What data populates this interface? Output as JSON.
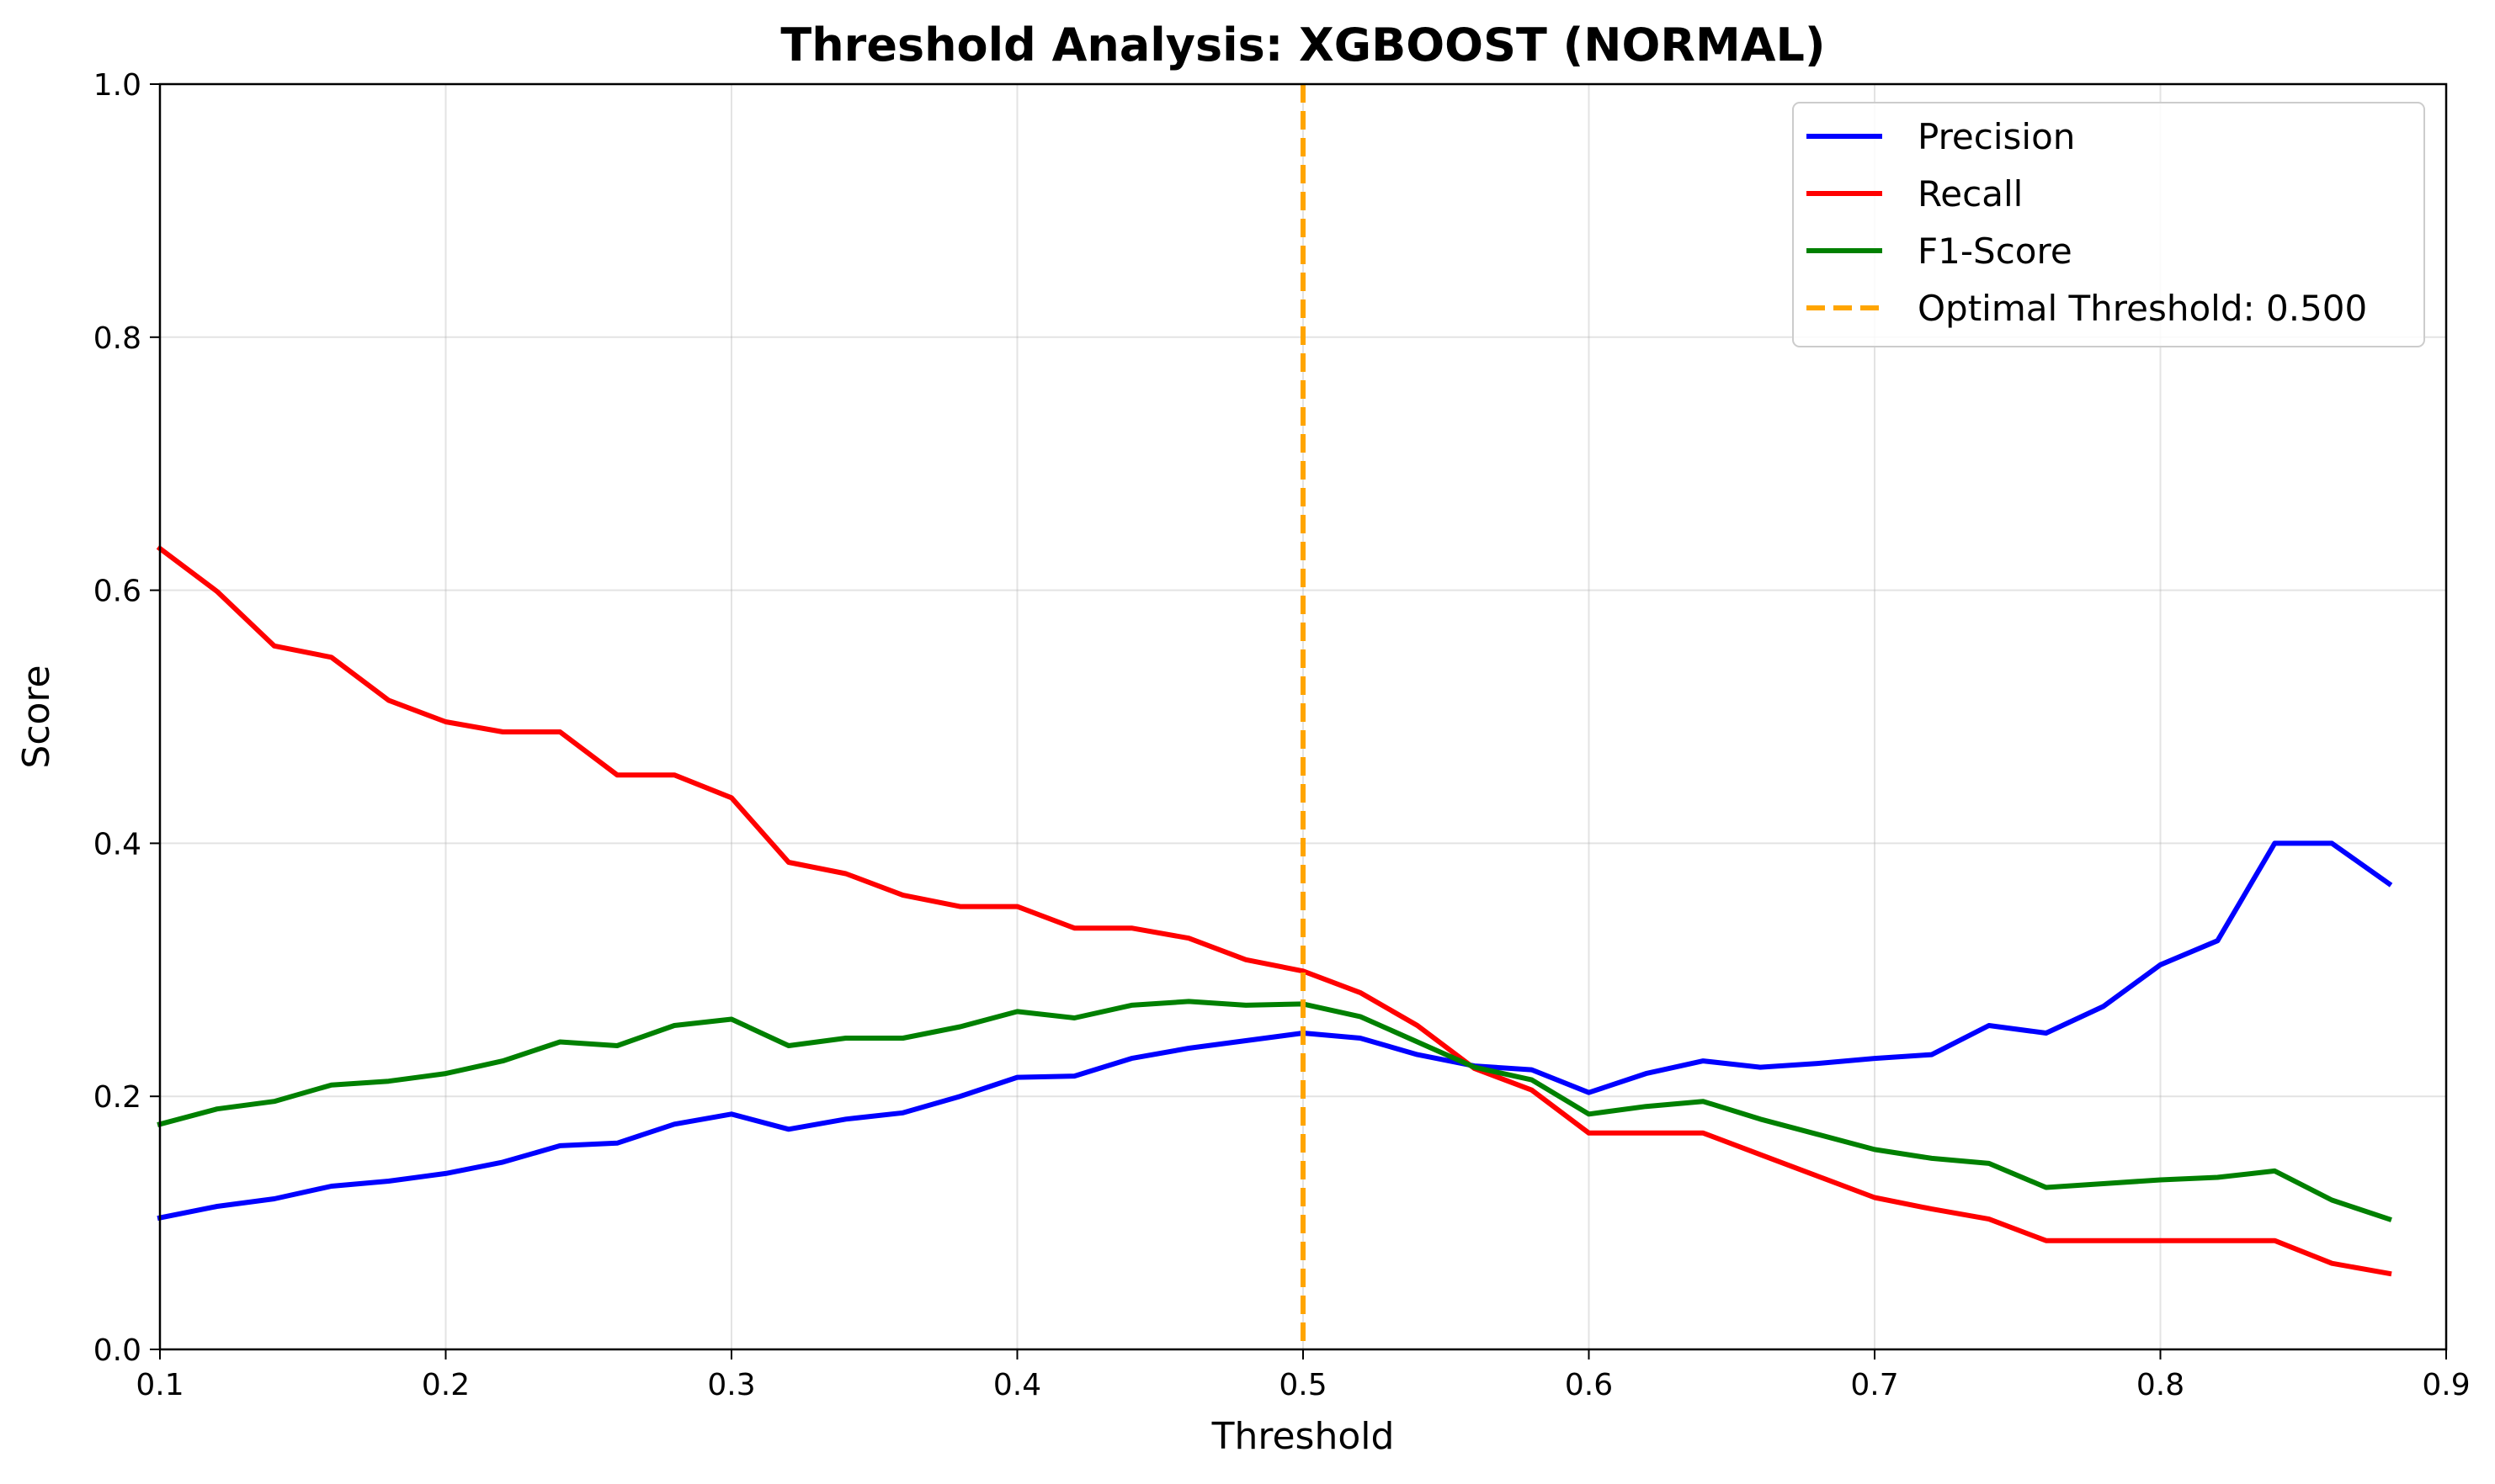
{
  "chart_data": {
    "type": "line",
    "title": "Threshold Analysis: XGBOOST (NORMAL)",
    "xlabel": "Threshold",
    "ylabel": "Score",
    "xlim": [
      0.1,
      0.9
    ],
    "ylim": [
      0.0,
      1.0
    ],
    "xticks": [
      "0.1",
      "0.2",
      "0.3",
      "0.4",
      "0.5",
      "0.6",
      "0.7",
      "0.8",
      "0.9"
    ],
    "yticks": [
      "0.0",
      "0.2",
      "0.4",
      "0.6",
      "0.8",
      "1.0"
    ],
    "grid": true,
    "legend_position": "top-right",
    "x": [
      0.1,
      0.12,
      0.14,
      0.16,
      0.18,
      0.2,
      0.22,
      0.24,
      0.26,
      0.28,
      0.3,
      0.32,
      0.34,
      0.36,
      0.38,
      0.4,
      0.42,
      0.44,
      0.46,
      0.48,
      0.5,
      0.52,
      0.54,
      0.56,
      0.58,
      0.6,
      0.62,
      0.64,
      0.66,
      0.68,
      0.7,
      0.72,
      0.74,
      0.76,
      0.78,
      0.8,
      0.82,
      0.84,
      0.86,
      0.88
    ],
    "series": [
      {
        "name": "Precision",
        "color": "#0000ff",
        "values": [
          0.104,
          0.113,
          0.119,
          0.129,
          0.133,
          0.139,
          0.148,
          0.161,
          0.163,
          0.178,
          0.186,
          0.174,
          0.182,
          0.187,
          0.2,
          0.215,
          0.216,
          0.23,
          0.238,
          0.244,
          0.25,
          0.246,
          0.233,
          0.224,
          0.221,
          0.203,
          0.218,
          0.228,
          0.223,
          0.226,
          0.23,
          0.233,
          0.256,
          0.25,
          0.271,
          0.304,
          0.323,
          0.4,
          0.4,
          0.368
        ]
      },
      {
        "name": "Recall",
        "color": "#ff0000",
        "values": [
          0.633,
          0.599,
          0.556,
          0.547,
          0.513,
          0.496,
          0.488,
          0.488,
          0.454,
          0.454,
          0.436,
          0.385,
          0.376,
          0.359,
          0.35,
          0.35,
          0.333,
          0.333,
          0.325,
          0.308,
          0.299,
          0.282,
          0.256,
          0.222,
          0.205,
          0.171,
          0.171,
          0.171,
          0.154,
          0.137,
          0.12,
          0.111,
          0.103,
          0.086,
          0.086,
          0.086,
          0.086,
          0.086,
          0.068,
          0.06
        ]
      },
      {
        "name": "F1-Score",
        "color": "#008000",
        "values": [
          0.178,
          0.19,
          0.196,
          0.209,
          0.212,
          0.218,
          0.228,
          0.243,
          0.24,
          0.256,
          0.261,
          0.24,
          0.246,
          0.246,
          0.255,
          0.267,
          0.262,
          0.272,
          0.275,
          0.272,
          0.273,
          0.263,
          0.243,
          0.223,
          0.213,
          0.186,
          0.192,
          0.196,
          0.182,
          0.17,
          0.158,
          0.151,
          0.147,
          0.128,
          0.131,
          0.134,
          0.136,
          0.141,
          0.118,
          0.103
        ]
      }
    ],
    "optimal_threshold": {
      "label": "Optimal Threshold: 0.500",
      "value": 0.5,
      "color": "#ffa500"
    }
  }
}
